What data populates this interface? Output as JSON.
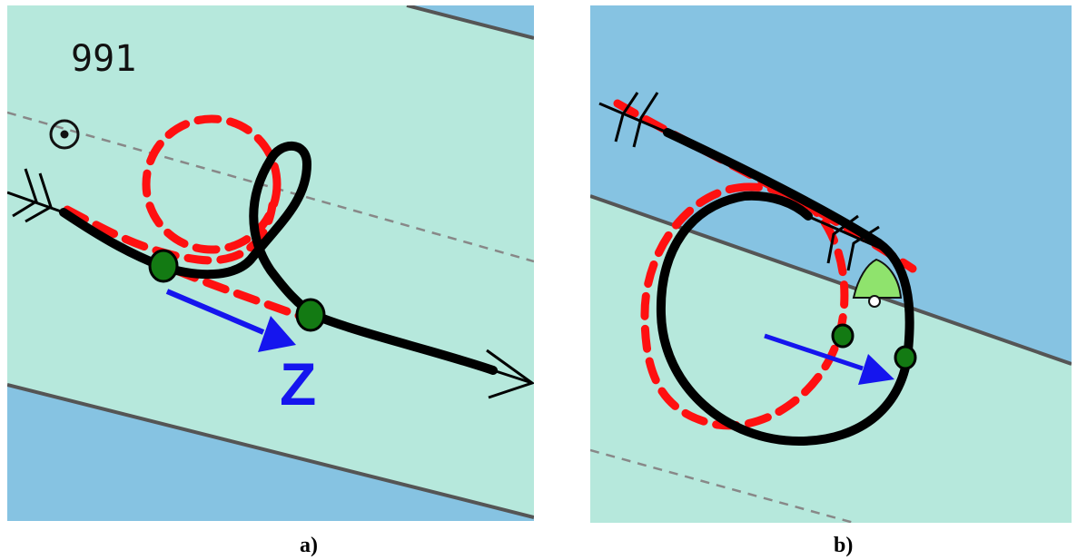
{
  "colors": {
    "deep_water": "#86c3e2",
    "shallow_water": "#b6e8dc",
    "depth_contour": "#555555",
    "planned_track": "#ff1010",
    "actual_track": "#000000",
    "waypoint_marker": "#137a13",
    "direction_arrow": "#1515ee",
    "buoy": "#8fe36d"
  },
  "panels": [
    {
      "id": "a",
      "caption": "a)",
      "depth_sounding": "991",
      "arrow_label": "Z",
      "symbols": [
        "position-fix-icon",
        "track-tail-arrow-icon",
        "track-head-arrow-icon"
      ],
      "waypoint_count": 2
    },
    {
      "id": "b",
      "caption": "b)",
      "symbols": [
        "track-tail-arrow-icon",
        "track-crossing-arrow-icon",
        "buoy-icon"
      ],
      "waypoint_count": 2
    }
  ]
}
